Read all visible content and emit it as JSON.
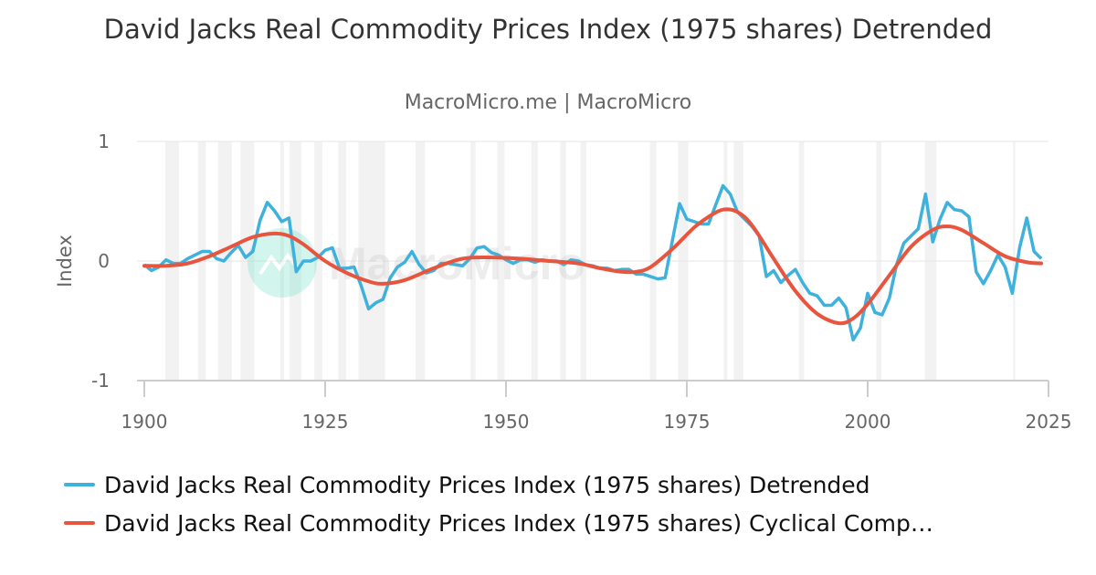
{
  "chart_data": {
    "type": "line",
    "title": "David Jacks Real Commodity Prices Index (1975 shares) Detrended",
    "subtitle": "MacroMicro.me | MacroMicro",
    "watermark": "MacroMicro",
    "ylabel": "Index",
    "xlabel": "",
    "xlim": [
      1900,
      2025
    ],
    "ylim": [
      -1,
      1
    ],
    "x_ticks": [
      "1900",
      "1925",
      "1950",
      "1975",
      "2000",
      "2025"
    ],
    "y_ticks": [
      "1",
      "0",
      "-1"
    ],
    "grid": true,
    "legend_position": "bottom",
    "shaded_periods": [
      [
        1902.9,
        1904.8
      ],
      [
        1907.4,
        1908.5
      ],
      [
        1910.2,
        1912.1
      ],
      [
        1913.3,
        1915.2
      ],
      [
        1918.8,
        1919.3
      ],
      [
        1920.1,
        1921.7
      ],
      [
        1923.5,
        1924.6
      ],
      [
        1926.8,
        1927.9
      ],
      [
        1929.6,
        1933.3
      ],
      [
        1937.5,
        1938.8
      ],
      [
        1945.1,
        1945.8
      ],
      [
        1948.8,
        1949.8
      ],
      [
        1953.5,
        1954.4
      ],
      [
        1957.5,
        1958.3
      ],
      [
        1960.3,
        1961.1
      ],
      [
        1969.9,
        1970.8
      ],
      [
        1973.8,
        1975.2
      ],
      [
        1980.1,
        1980.6
      ],
      [
        1981.5,
        1982.8
      ],
      [
        1990.5,
        1991.2
      ],
      [
        2001.2,
        2001.9
      ],
      [
        2007.9,
        2009.5
      ],
      [
        2020.1,
        2020.4
      ]
    ],
    "series": [
      {
        "name": "David Jacks Real Commodity Prices Index (1975 shares) Detrended",
        "color": "#3eb1dc",
        "x": [
          1900,
          1901,
          1902,
          1903,
          1904,
          1905,
          1906,
          1907,
          1908,
          1909,
          1910,
          1911,
          1912,
          1913,
          1914,
          1915,
          1916,
          1917,
          1918,
          1919,
          1920,
          1921,
          1922,
          1923,
          1924,
          1925,
          1926,
          1927,
          1928,
          1929,
          1930,
          1931,
          1932,
          1933,
          1934,
          1935,
          1936,
          1937,
          1938,
          1939,
          1940,
          1941,
          1942,
          1943,
          1944,
          1945,
          1946,
          1947,
          1948,
          1949,
          1950,
          1951,
          1952,
          1953,
          1954,
          1955,
          1956,
          1957,
          1958,
          1959,
          1960,
          1961,
          1962,
          1963,
          1964,
          1965,
          1966,
          1967,
          1968,
          1969,
          1970,
          1971,
          1972,
          1973,
          1974,
          1975,
          1976,
          1977,
          1978,
          1979,
          1980,
          1981,
          1982,
          1983,
          1984,
          1985,
          1986,
          1987,
          1988,
          1989,
          1990,
          1991,
          1992,
          1993,
          1994,
          1995,
          1996,
          1997,
          1998,
          1999,
          2000,
          2001,
          2002,
          2003,
          2004,
          2005,
          2006,
          2007,
          2008,
          2009,
          2010,
          2011,
          2012,
          2013,
          2014,
          2015,
          2016,
          2017,
          2018,
          2019,
          2020,
          2021,
          2022,
          2023,
          2024
        ],
        "values": [
          -0.03,
          -0.08,
          -0.05,
          0.01,
          -0.02,
          -0.02,
          0.02,
          0.05,
          0.08,
          0.08,
          0.02,
          0.0,
          0.07,
          0.13,
          0.03,
          0.08,
          0.34,
          0.49,
          0.42,
          0.33,
          0.36,
          -0.09,
          0.0,
          0.0,
          0.03,
          0.09,
          0.11,
          -0.06,
          -0.06,
          -0.05,
          -0.21,
          -0.4,
          -0.35,
          -0.32,
          -0.14,
          -0.05,
          -0.01,
          0.08,
          -0.03,
          -0.1,
          -0.08,
          -0.02,
          -0.02,
          -0.03,
          -0.04,
          0.02,
          0.11,
          0.12,
          0.07,
          0.05,
          0.01,
          -0.02,
          0.01,
          0.01,
          -0.01,
          0.01,
          0.0,
          0.0,
          -0.03,
          0.01,
          0.0,
          -0.03,
          -0.04,
          -0.06,
          -0.06,
          -0.08,
          -0.07,
          -0.07,
          -0.11,
          -0.11,
          -0.13,
          -0.15,
          -0.14,
          0.17,
          0.48,
          0.35,
          0.33,
          0.31,
          0.31,
          0.47,
          0.63,
          0.56,
          0.41,
          0.35,
          0.29,
          0.21,
          -0.13,
          -0.08,
          -0.18,
          -0.12,
          -0.07,
          -0.18,
          -0.27,
          -0.29,
          -0.37,
          -0.37,
          -0.31,
          -0.39,
          -0.66,
          -0.56,
          -0.27,
          -0.43,
          -0.45,
          -0.31,
          -0.03,
          0.15,
          0.21,
          0.27,
          0.56,
          0.16,
          0.35,
          0.49,
          0.43,
          0.42,
          0.37,
          -0.09,
          -0.19,
          -0.08,
          0.05,
          -0.05,
          -0.27,
          0.11,
          0.36,
          0.08,
          0.02
        ]
      },
      {
        "name": "David Jacks Real Commodity Prices Index (1975 shares) Cyclical Comp…",
        "color": "#e8553e",
        "x": [
          1900,
          1903,
          1906,
          1909,
          1912,
          1915,
          1918,
          1920,
          1922,
          1925,
          1928,
          1931,
          1933,
          1936,
          1940,
          1944,
          1948,
          1952,
          1956,
          1960,
          1963,
          1966,
          1968,
          1970,
          1973,
          1976,
          1978,
          1980,
          1982,
          1984,
          1987,
          1990,
          1993,
          1996,
          1998,
          2000,
          2003,
          2006,
          2009,
          2011,
          2013,
          2016,
          2019,
          2022,
          2024
        ],
        "values": [
          -0.04,
          -0.04,
          -0.02,
          0.04,
          0.12,
          0.2,
          0.23,
          0.21,
          0.14,
          0.0,
          -0.1,
          -0.17,
          -0.19,
          -0.16,
          -0.06,
          0.02,
          0.03,
          0.02,
          0.0,
          -0.02,
          -0.06,
          -0.09,
          -0.09,
          -0.05,
          0.1,
          0.28,
          0.37,
          0.43,
          0.41,
          0.3,
          0.02,
          -0.25,
          -0.44,
          -0.52,
          -0.48,
          -0.36,
          -0.12,
          0.12,
          0.26,
          0.29,
          0.26,
          0.15,
          0.04,
          -0.01,
          -0.02
        ]
      }
    ]
  }
}
